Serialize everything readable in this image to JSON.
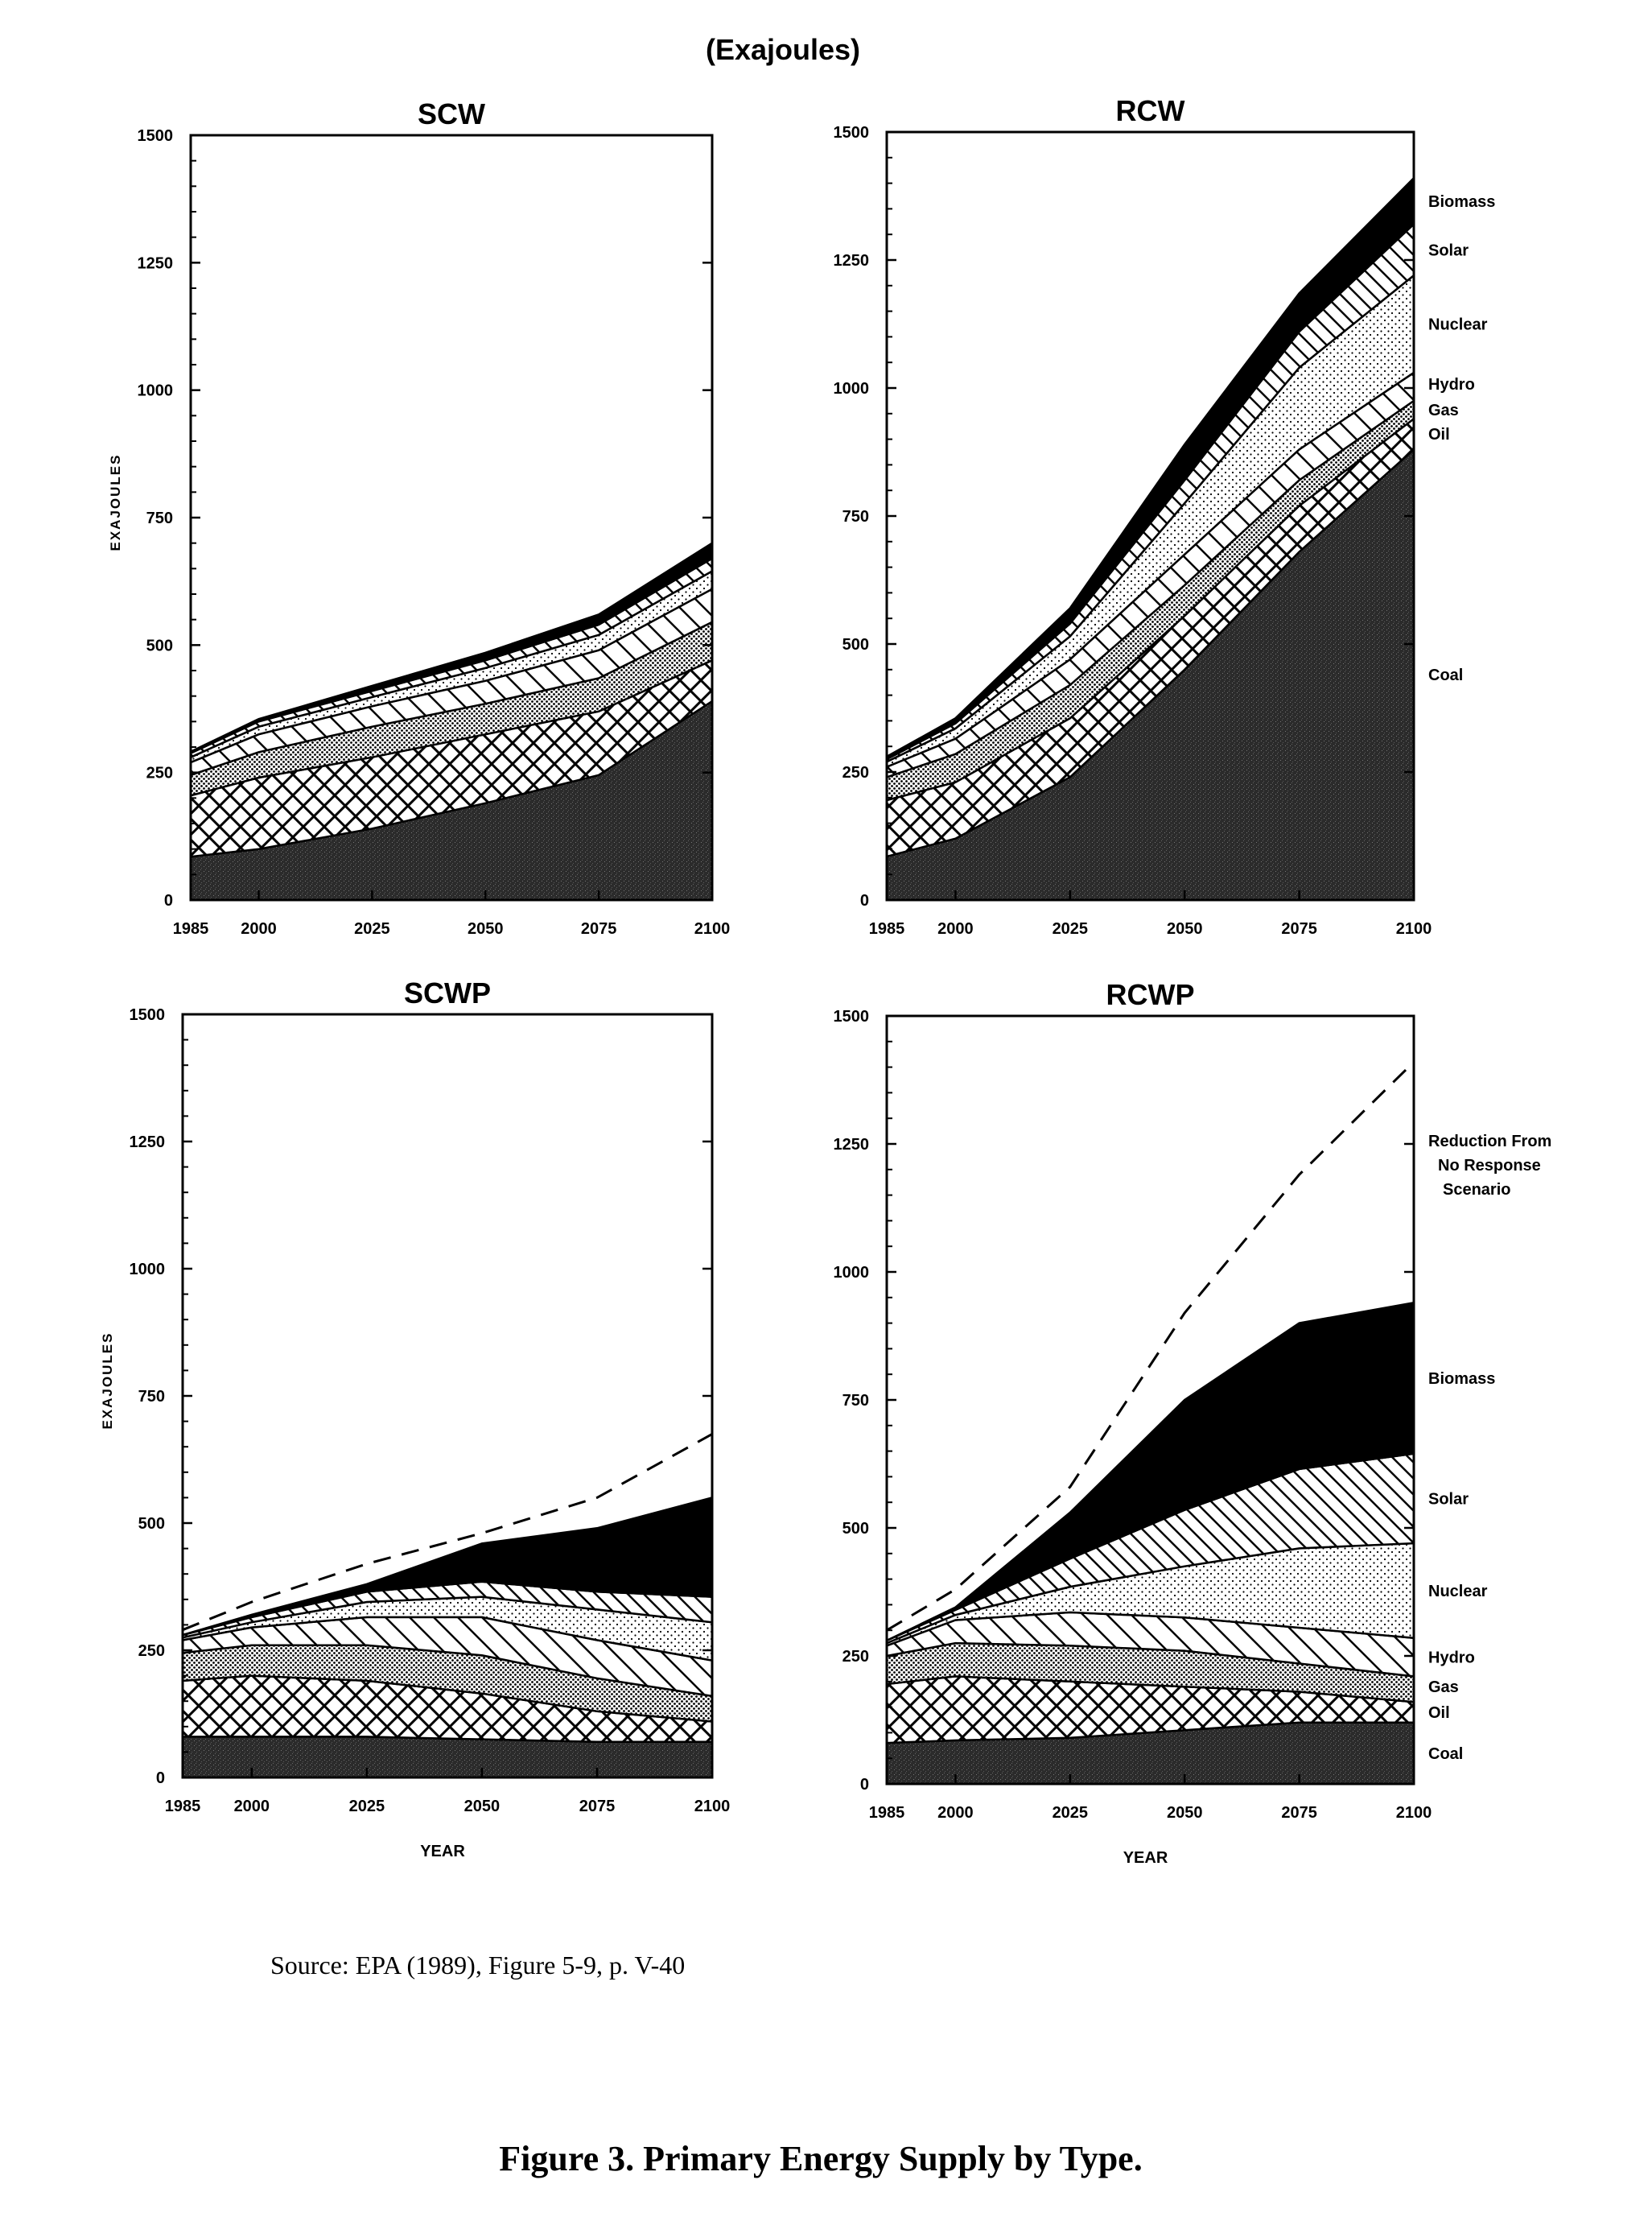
{
  "figure": {
    "units_heading": "(Exajoules)",
    "source": "Source:  EPA (1989), Figure 5-9, p. V-40",
    "caption": "Figure 3.  Primary Energy Supply by Type."
  },
  "chart_data": [
    {
      "type": "area",
      "title": "SCW",
      "xlabel": "",
      "ylabel": "EXAJOULES",
      "x": [
        1985,
        2000,
        2025,
        2050,
        2075,
        2100
      ],
      "x_ticks": [
        "1985",
        "2000",
        "2025",
        "2050",
        "2075",
        "2100"
      ],
      "ylim": [
        0,
        1500
      ],
      "y_ticks": [
        "0",
        "250",
        "500",
        "750",
        "1000",
        "1250",
        "1500"
      ],
      "stacked": true,
      "series": [
        {
          "name": "",
          "pattern": "dark-stipple",
          "values": [
            85,
            100,
            140,
            190,
            245,
            390
          ]
        },
        {
          "name": "",
          "pattern": "crosshatch",
          "values": [
            120,
            140,
            140,
            135,
            125,
            80
          ]
        },
        {
          "name": "",
          "pattern": "dots",
          "values": [
            40,
            50,
            60,
            60,
            65,
            75
          ]
        },
        {
          "name": "",
          "pattern": "diagonal",
          "values": [
            25,
            35,
            40,
            45,
            55,
            65
          ]
        },
        {
          "name": "",
          "pattern": "light-dots",
          "values": [
            10,
            15,
            18,
            25,
            30,
            35
          ]
        },
        {
          "name": "",
          "pattern": "narrow-hatch",
          "values": [
            8,
            10,
            12,
            15,
            20,
            25
          ]
        },
        {
          "name": "",
          "pattern": "solid-black",
          "values": [
            3,
            5,
            10,
            15,
            20,
            30
          ]
        }
      ]
    },
    {
      "type": "area",
      "title": "RCW",
      "xlabel": "",
      "ylabel": "",
      "x": [
        1985,
        2000,
        2025,
        2050,
        2075,
        2100
      ],
      "x_ticks": [
        "1985",
        "2000",
        "2025",
        "2050",
        "2075",
        "2100"
      ],
      "ylim": [
        0,
        1500
      ],
      "y_ticks": [
        "0",
        "250",
        "500",
        "750",
        "1000",
        "1250",
        "1500"
      ],
      "stacked": true,
      "series": [
        {
          "name": "Coal",
          "pattern": "dark-stipple",
          "values": [
            85,
            120,
            240,
            450,
            680,
            880
          ]
        },
        {
          "name": "Oil",
          "pattern": "crosshatch",
          "values": [
            110,
            110,
            115,
            105,
            90,
            60
          ]
        },
        {
          "name": "Gas",
          "pattern": "dots",
          "values": [
            45,
            55,
            65,
            60,
            50,
            35
          ]
        },
        {
          "name": "Hydro",
          "pattern": "diagonal",
          "values": [
            20,
            30,
            50,
            60,
            60,
            55
          ]
        },
        {
          "name": "Nuclear",
          "pattern": "light-dots",
          "values": [
            10,
            20,
            45,
            100,
            160,
            190
          ]
        },
        {
          "name": "Solar",
          "pattern": "narrow-hatch",
          "values": [
            5,
            10,
            25,
            45,
            70,
            100
          ]
        },
        {
          "name": "Biomass",
          "pattern": "solid-black",
          "values": [
            5,
            10,
            30,
            70,
            75,
            90
          ]
        }
      ]
    },
    {
      "type": "area",
      "title": "SCWP",
      "xlabel": "YEAR",
      "ylabel": "EXAJOULES",
      "x": [
        1985,
        2000,
        2025,
        2050,
        2075,
        2100
      ],
      "x_ticks": [
        "1985",
        "2000",
        "2025",
        "2050",
        "2075",
        "2100"
      ],
      "ylim": [
        0,
        1500
      ],
      "y_ticks": [
        "0",
        "250",
        "500",
        "750",
        "1000",
        "1250",
        "1500"
      ],
      "stacked": true,
      "series": [
        {
          "name": "",
          "pattern": "dark-stipple",
          "values": [
            80,
            80,
            80,
            75,
            70,
            70
          ]
        },
        {
          "name": "",
          "pattern": "crosshatch",
          "values": [
            110,
            120,
            110,
            90,
            60,
            40
          ]
        },
        {
          "name": "",
          "pattern": "dots",
          "values": [
            55,
            60,
            70,
            75,
            65,
            50
          ]
        },
        {
          "name": "",
          "pattern": "diagonal",
          "values": [
            25,
            35,
            55,
            75,
            75,
            70
          ]
        },
        {
          "name": "",
          "pattern": "light-dots",
          "values": [
            5,
            10,
            30,
            40,
            60,
            75
          ]
        },
        {
          "name": "",
          "pattern": "narrow-hatch",
          "values": [
            5,
            10,
            20,
            30,
            35,
            50
          ]
        },
        {
          "name": "",
          "pattern": "solid-black",
          "values": [
            0,
            5,
            15,
            75,
            125,
            195
          ]
        }
      ],
      "reference_line": {
        "name": "",
        "values": [
          290,
          345,
          420,
          480,
          550,
          675
        ]
      }
    },
    {
      "type": "area",
      "title": "RCWP",
      "xlabel": "YEAR",
      "ylabel": "",
      "x": [
        1985,
        2000,
        2025,
        2050,
        2075,
        2100
      ],
      "x_ticks": [
        "1985",
        "2000",
        "2025",
        "2050",
        "2075",
        "2100"
      ],
      "ylim": [
        0,
        1500
      ],
      "y_ticks": [
        "0",
        "250",
        "500",
        "750",
        "1000",
        "1250",
        "1500"
      ],
      "stacked": true,
      "series": [
        {
          "name": "Coal",
          "pattern": "dark-stipple",
          "values": [
            80,
            85,
            90,
            105,
            120,
            120
          ]
        },
        {
          "name": "Oil",
          "pattern": "crosshatch",
          "values": [
            115,
            125,
            110,
            85,
            60,
            40
          ]
        },
        {
          "name": "Gas",
          "pattern": "dots",
          "values": [
            55,
            65,
            70,
            70,
            55,
            50
          ]
        },
        {
          "name": "Hydro",
          "pattern": "diagonal",
          "values": [
            20,
            45,
            65,
            65,
            70,
            75
          ]
        },
        {
          "name": "Nuclear",
          "pattern": "light-dots",
          "values": [
            5,
            10,
            50,
            100,
            155,
            185
          ]
        },
        {
          "name": "Solar",
          "pattern": "narrow-hatch",
          "values": [
            5,
            10,
            55,
            110,
            155,
            175
          ]
        },
        {
          "name": "Biomass",
          "pattern": "solid-black",
          "values": [
            0,
            5,
            90,
            215,
            285,
            295
          ]
        }
      ],
      "reference_line": {
        "name": "",
        "values": [
          300,
          380,
          580,
          920,
          1190,
          1410
        ]
      },
      "annotation": [
        "Reduction From",
        "No Response",
        "Scenario"
      ]
    }
  ]
}
